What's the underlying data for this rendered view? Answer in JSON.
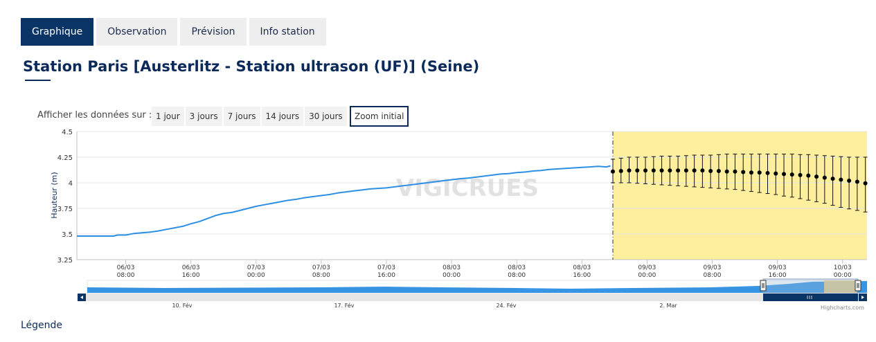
{
  "tabs": [
    {
      "label": "Graphique",
      "active": true
    },
    {
      "label": "Observation",
      "active": false
    },
    {
      "label": "Prévision",
      "active": false
    },
    {
      "label": "Info station",
      "active": false
    }
  ],
  "station_title": "Station Paris [Austerlitz - Station ultrason (UF)] (Seine)",
  "range_selector": {
    "label": "Afficher les données sur :",
    "buttons": [
      "1 jour",
      "3 jours",
      "7 jours",
      "14 jours",
      "30 jours"
    ],
    "zoom_label": "Zoom initial"
  },
  "legend_link": "Légende",
  "chart_data": {
    "type": "line",
    "ylabel": "Hauteur (m)",
    "ylim": [
      3.25,
      4.5
    ],
    "yticks": [
      3.25,
      3.5,
      3.75,
      4,
      4.25,
      4.5
    ],
    "grid": true,
    "x_ticks": [
      {
        "h": 8,
        "label": [
          "06/03",
          "08:00"
        ]
      },
      {
        "h": 16,
        "label": [
          "06/03",
          "16:00"
        ]
      },
      {
        "h": 24,
        "label": [
          "07/03",
          "00:00"
        ]
      },
      {
        "h": 32,
        "label": [
          "07/03",
          "08:00"
        ]
      },
      {
        "h": 40,
        "label": [
          "07/03",
          "16:00"
        ]
      },
      {
        "h": 48,
        "label": [
          "08/03",
          "00:00"
        ]
      },
      {
        "h": 56,
        "label": [
          "08/03",
          "08:00"
        ]
      },
      {
        "h": 64,
        "label": [
          "08/03",
          "16:00"
        ]
      },
      {
        "h": 72,
        "label": [
          "09/03",
          "00:00"
        ]
      },
      {
        "h": 80,
        "label": [
          "09/03",
          "08:00"
        ]
      },
      {
        "h": 88,
        "label": [
          "09/03",
          "16:00"
        ]
      },
      {
        "h": 96,
        "label": [
          "10/03",
          "00:00"
        ]
      }
    ],
    "observed": {
      "color": "#2b8fe3",
      "points": [
        [
          2,
          3.48
        ],
        [
          6.5,
          3.48
        ],
        [
          7,
          3.49
        ],
        [
          8,
          3.49
        ],
        [
          9,
          3.505
        ],
        [
          10,
          3.512
        ],
        [
          11,
          3.518
        ],
        [
          12,
          3.53
        ],
        [
          13,
          3.545
        ],
        [
          14,
          3.56
        ],
        [
          15,
          3.575
        ],
        [
          16,
          3.6
        ],
        [
          17,
          3.62
        ],
        [
          18,
          3.65
        ],
        [
          19,
          3.68
        ],
        [
          20,
          3.7
        ],
        [
          21,
          3.71
        ],
        [
          22,
          3.73
        ],
        [
          23,
          3.75
        ],
        [
          24,
          3.77
        ],
        [
          25,
          3.785
        ],
        [
          26,
          3.8
        ],
        [
          27,
          3.815
        ],
        [
          28,
          3.83
        ],
        [
          29,
          3.84
        ],
        [
          30,
          3.855
        ],
        [
          31,
          3.865
        ],
        [
          32,
          3.875
        ],
        [
          33,
          3.885
        ],
        [
          34,
          3.9
        ],
        [
          35,
          3.91
        ],
        [
          36,
          3.92
        ],
        [
          37,
          3.93
        ],
        [
          38,
          3.94
        ],
        [
          39,
          3.945
        ],
        [
          40,
          3.95
        ],
        [
          41,
          3.96
        ],
        [
          42,
          3.97
        ],
        [
          43,
          3.98
        ],
        [
          44,
          3.99
        ],
        [
          45,
          4.0
        ],
        [
          46,
          4.01
        ],
        [
          47,
          4.02
        ],
        [
          48,
          4.03
        ],
        [
          49,
          4.04
        ],
        [
          50,
          4.045
        ],
        [
          51,
          4.055
        ],
        [
          52,
          4.065
        ],
        [
          53,
          4.075
        ],
        [
          54,
          4.085
        ],
        [
          55,
          4.09
        ],
        [
          56,
          4.1
        ],
        [
          57,
          4.105
        ],
        [
          58,
          4.115
        ],
        [
          59,
          4.12
        ],
        [
          60,
          4.13
        ],
        [
          61,
          4.135
        ],
        [
          62,
          4.14
        ],
        [
          63,
          4.145
        ],
        [
          64,
          4.15
        ],
        [
          65,
          4.155
        ],
        [
          66,
          4.16
        ],
        [
          67,
          4.155
        ],
        [
          67.5,
          4.165
        ]
      ]
    },
    "forecast": {
      "start_h": 67.8,
      "end_h": 99,
      "shade_color": "#fdef9e",
      "points": [
        {
          "h": 67.8,
          "y": 4.11,
          "low": 4.0,
          "high": 4.23
        },
        {
          "h": 68.8,
          "y": 4.115,
          "low": 4.0,
          "high": 4.24
        },
        {
          "h": 69.8,
          "y": 4.12,
          "low": 4.0,
          "high": 4.25
        },
        {
          "h": 70.8,
          "y": 4.12,
          "low": 3.995,
          "high": 4.25
        },
        {
          "h": 71.8,
          "y": 4.12,
          "low": 3.99,
          "high": 4.25
        },
        {
          "h": 72.8,
          "y": 4.12,
          "low": 3.985,
          "high": 4.255
        },
        {
          "h": 73.8,
          "y": 4.12,
          "low": 3.98,
          "high": 4.26
        },
        {
          "h": 74.8,
          "y": 4.12,
          "low": 3.975,
          "high": 4.26
        },
        {
          "h": 75.8,
          "y": 4.12,
          "low": 3.97,
          "high": 4.26
        },
        {
          "h": 76.8,
          "y": 4.12,
          "low": 3.965,
          "high": 4.265
        },
        {
          "h": 77.8,
          "y": 4.12,
          "low": 3.96,
          "high": 4.27
        },
        {
          "h": 78.8,
          "y": 4.12,
          "low": 3.955,
          "high": 4.27
        },
        {
          "h": 79.8,
          "y": 4.115,
          "low": 3.95,
          "high": 4.27
        },
        {
          "h": 80.8,
          "y": 4.115,
          "low": 3.945,
          "high": 4.275
        },
        {
          "h": 81.8,
          "y": 4.11,
          "low": 3.94,
          "high": 4.28
        },
        {
          "h": 82.8,
          "y": 4.11,
          "low": 3.935,
          "high": 4.28
        },
        {
          "h": 83.8,
          "y": 4.105,
          "low": 3.925,
          "high": 4.28
        },
        {
          "h": 84.8,
          "y": 4.1,
          "low": 3.915,
          "high": 4.28
        },
        {
          "h": 85.8,
          "y": 4.1,
          "low": 3.905,
          "high": 4.28
        },
        {
          "h": 86.8,
          "y": 4.095,
          "low": 3.895,
          "high": 4.28
        },
        {
          "h": 87.8,
          "y": 4.09,
          "low": 3.885,
          "high": 4.28
        },
        {
          "h": 88.8,
          "y": 4.085,
          "low": 3.87,
          "high": 4.28
        },
        {
          "h": 89.8,
          "y": 4.08,
          "low": 3.86,
          "high": 4.28
        },
        {
          "h": 90.8,
          "y": 4.075,
          "low": 3.845,
          "high": 4.275
        },
        {
          "h": 91.8,
          "y": 4.07,
          "low": 3.83,
          "high": 4.275
        },
        {
          "h": 92.8,
          "y": 4.06,
          "low": 3.815,
          "high": 4.27
        },
        {
          "h": 93.8,
          "y": 4.05,
          "low": 3.8,
          "high": 4.265
        },
        {
          "h": 94.8,
          "y": 4.04,
          "low": 3.78,
          "high": 4.26
        },
        {
          "h": 95.8,
          "y": 4.03,
          "low": 3.76,
          "high": 4.255
        },
        {
          "h": 96.8,
          "y": 4.02,
          "low": 3.745,
          "high": 4.25
        },
        {
          "h": 97.8,
          "y": 4.01,
          "low": 3.73,
          "high": 4.25
        },
        {
          "h": 98.8,
          "y": 3.995,
          "low": 3.715,
          "high": 4.25
        }
      ]
    },
    "watermark": "VIGICRUES",
    "navigator": {
      "labels": [
        "10. Fév",
        "17. Fév",
        "24. Fév",
        "2. Mar"
      ],
      "credits": "Highcharts.com"
    }
  }
}
